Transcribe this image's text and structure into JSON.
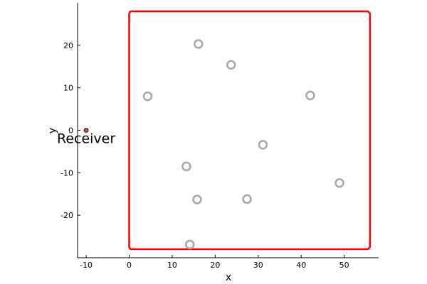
{
  "chart_data": {
    "type": "scatter",
    "xlabel": "x",
    "ylabel": "y",
    "xlim": [
      -12,
      58
    ],
    "ylim": [
      -30,
      30
    ],
    "x_ticks": [
      -10,
      0,
      10,
      20,
      30,
      40,
      50
    ],
    "y_ticks": [
      -20,
      -10,
      0,
      10,
      20
    ],
    "grid": false,
    "legend": "none",
    "boundary": {
      "color": "#ff0000",
      "points": [
        [
          0,
          27.5
        ],
        [
          0.3,
          28
        ],
        [
          55.5,
          28
        ],
        [
          56,
          27.5
        ],
        [
          56,
          -27.5
        ],
        [
          55.5,
          -28
        ],
        [
          0.3,
          -28
        ],
        [
          0,
          -27.5
        ]
      ]
    },
    "series": [
      {
        "marker": "hollow-circle",
        "color": "#a6a6a6",
        "points": [
          [
            16.1,
            20.3
          ],
          [
            23.7,
            15.4
          ],
          [
            4.3,
            8.0
          ],
          [
            42.1,
            8.2
          ],
          [
            31.1,
            -3.4
          ],
          [
            13.3,
            -8.5
          ],
          [
            48.9,
            -12.4
          ],
          [
            15.8,
            -16.3
          ],
          [
            27.4,
            -16.2
          ],
          [
            14.1,
            -26.9
          ]
        ]
      },
      {
        "marker": "filled-circle",
        "color": "#c0504d",
        "points": [
          [
            -10,
            0
          ]
        ]
      }
    ],
    "annotations": [
      {
        "text": "Receiver",
        "x": -10,
        "y": 0
      }
    ]
  }
}
